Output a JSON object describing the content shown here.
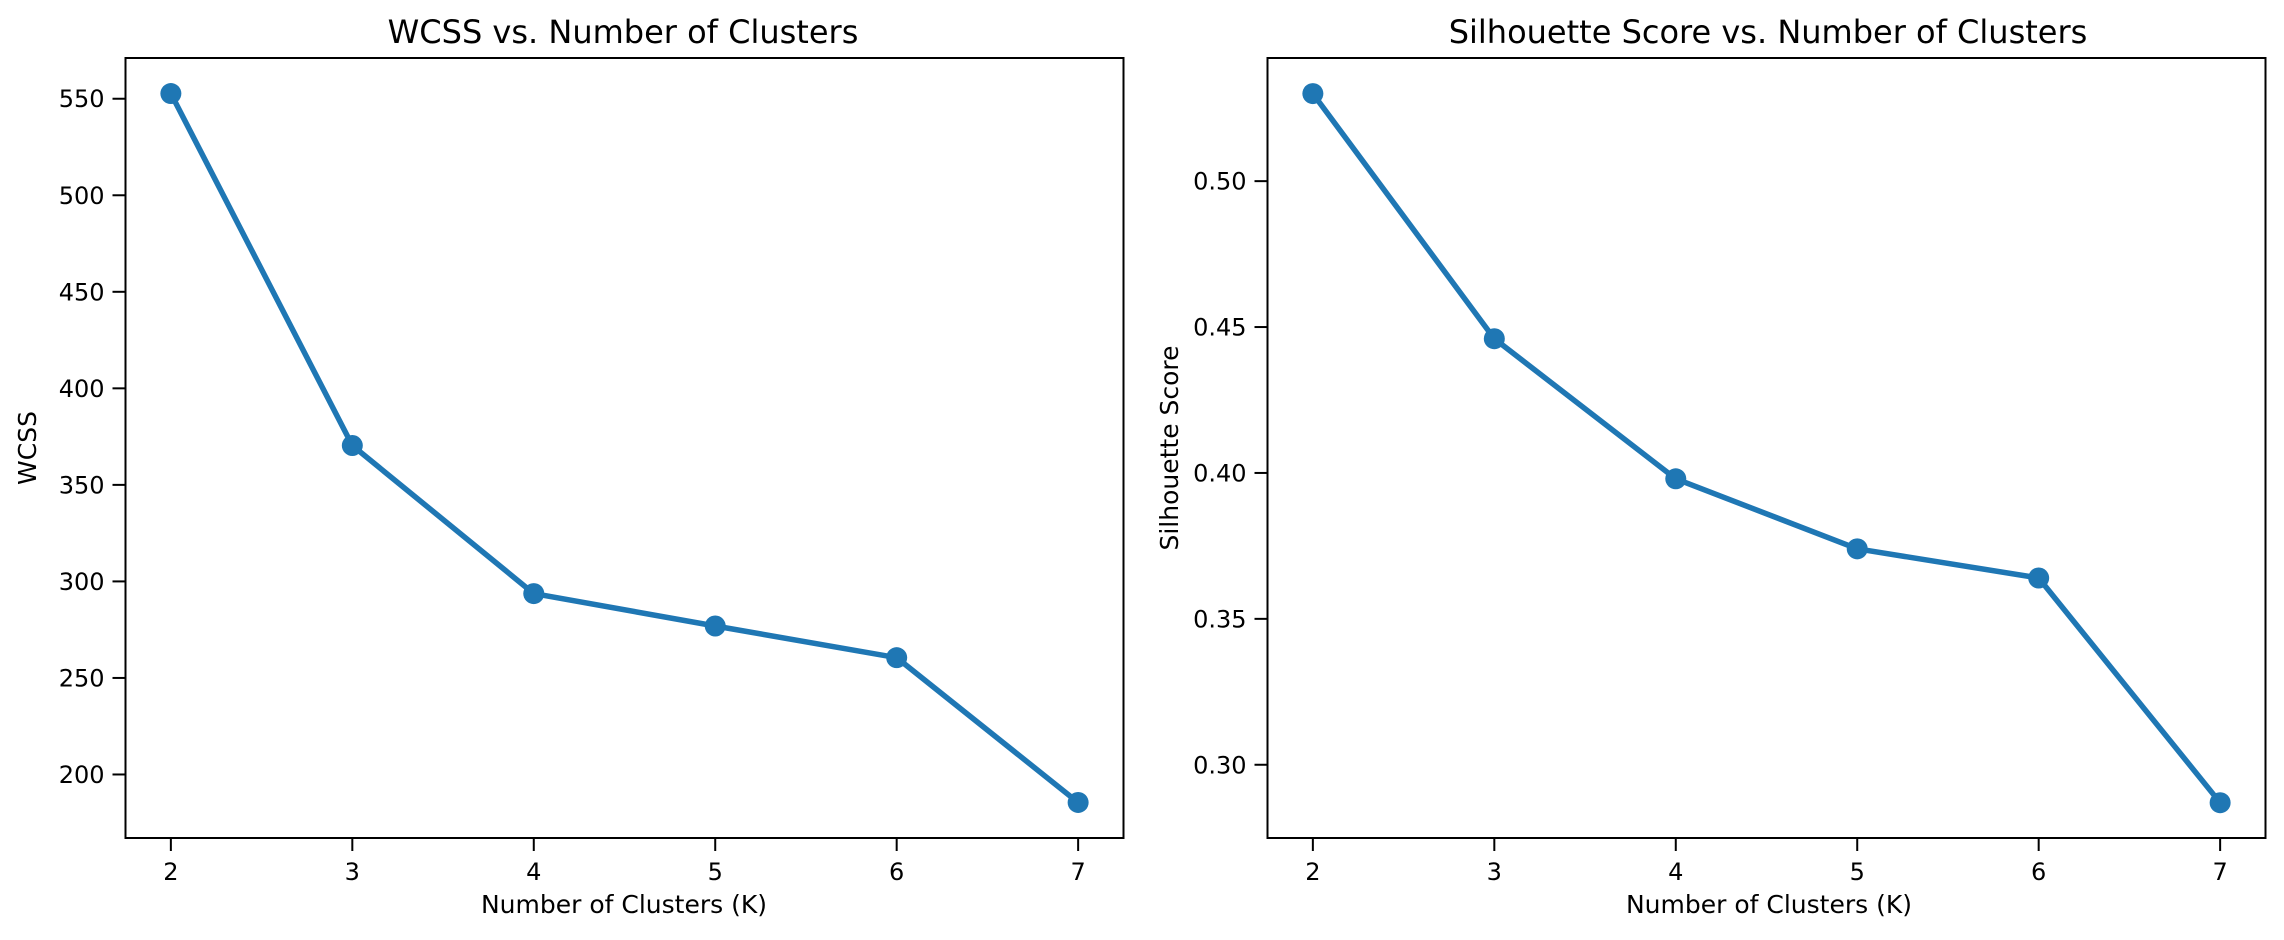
{
  "figure": {
    "background": "#ffffff",
    "text_color": "#000000",
    "spine_color": "#000000"
  },
  "chart_data": [
    {
      "type": "line",
      "title": "WCSS vs. Number of Clusters",
      "xlabel": "Number of Clusters (K)",
      "ylabel": "WCSS",
      "x": [
        2,
        3,
        4,
        5,
        6,
        7
      ],
      "y": [
        552.7,
        370.4,
        293.7,
        276.9,
        260.5,
        185.5
      ],
      "xticks": [
        2,
        3,
        4,
        5,
        6,
        7
      ],
      "xtick_labels": [
        "2",
        "3",
        "4",
        "5",
        "6",
        "7"
      ],
      "yticks": [
        200,
        250,
        300,
        350,
        400,
        450,
        500,
        550
      ],
      "ytick_labels": [
        "200",
        "250",
        "300",
        "350",
        "400",
        "450",
        "500",
        "550"
      ],
      "xlim": [
        1.75,
        7.25
      ],
      "ylim": [
        167.1,
        571.1
      ],
      "grid": false,
      "legend": null,
      "line_color": "#1f77b4",
      "marker": "circle"
    },
    {
      "type": "line",
      "title": "Silhouette Score vs. Number of Clusters",
      "xlabel": "Number of Clusters (K)",
      "ylabel": "Silhouette Score",
      "x": [
        2,
        3,
        4,
        5,
        6,
        7
      ],
      "y": [
        0.53,
        0.446,
        0.398,
        0.374,
        0.364,
        0.287
      ],
      "xticks": [
        2,
        3,
        4,
        5,
        6,
        7
      ],
      "xtick_labels": [
        "2",
        "3",
        "4",
        "5",
        "6",
        "7"
      ],
      "yticks": [
        0.3,
        0.35,
        0.4,
        0.45,
        0.5
      ],
      "ytick_labels": [
        "0.30",
        "0.35",
        "0.40",
        "0.45",
        "0.50"
      ],
      "xlim": [
        1.75,
        7.25
      ],
      "ylim": [
        0.2749,
        0.5422
      ],
      "grid": false,
      "legend": null,
      "line_color": "#1f77b4",
      "marker": "circle"
    }
  ]
}
